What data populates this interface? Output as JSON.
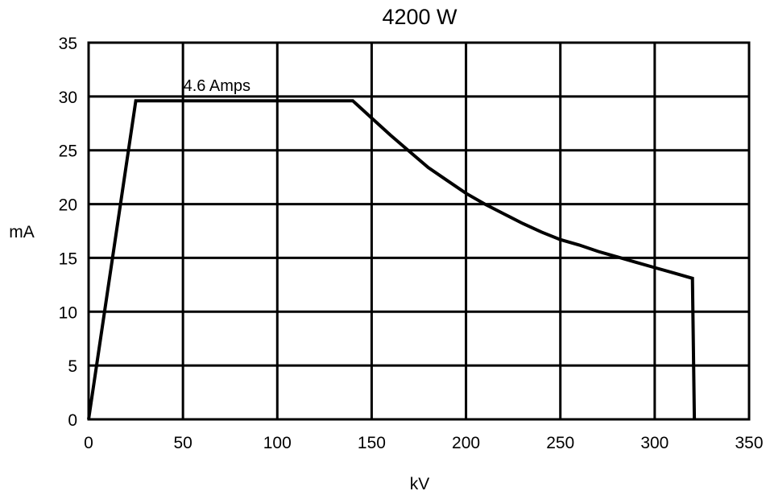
{
  "chart_data": {
    "type": "line",
    "title": "4200 W",
    "xlabel": "kV",
    "ylabel": "mA",
    "xlim": [
      0,
      350
    ],
    "ylim": [
      0,
      35
    ],
    "xticks": [
      "0",
      "50",
      "100",
      "150",
      "200",
      "250",
      "300",
      "350"
    ],
    "yticks": [
      "0",
      "5",
      "10",
      "15",
      "20",
      "25",
      "30",
      "35"
    ],
    "grid": true,
    "series": [
      {
        "x": [
          0,
          25,
          140,
          150,
          160,
          170,
          180,
          190,
          200,
          210,
          220,
          230,
          240,
          250,
          260,
          270,
          280,
          290,
          300,
          310,
          320,
          321
        ],
        "values": [
          0,
          29.6,
          29.6,
          28.0,
          26.4,
          24.9,
          23.4,
          22.2,
          21.0,
          20.0,
          19.1,
          18.2,
          17.4,
          16.7,
          16.2,
          15.6,
          15.1,
          14.6,
          14.1,
          13.6,
          13.1,
          0
        ]
      }
    ],
    "annotations": [
      {
        "text": "4.6 Amps",
        "x": 68,
        "y": 29.6
      }
    ]
  }
}
